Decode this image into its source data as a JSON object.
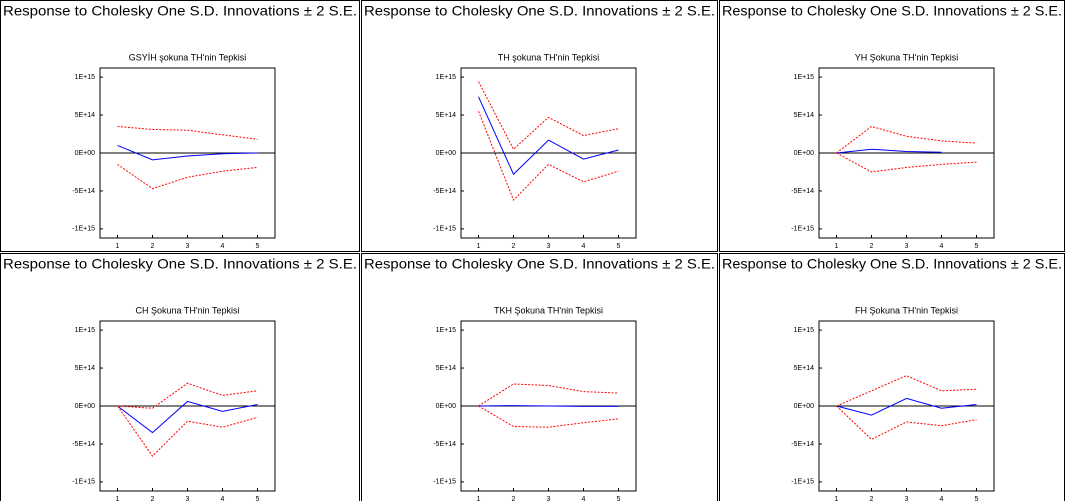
{
  "chart_data": [
    {
      "type": "line",
      "header": "Response to Cholesky One S.D. Innovations ± 2 S.E.",
      "title": "GSYİH şokuna TH'nin Tepkisi",
      "x": [
        1,
        2,
        3,
        4,
        5
      ],
      "xlim": [
        0.5,
        5.5
      ],
      "ylim": [
        -1120000000000000.0,
        1120000000000000.0
      ],
      "yticks": [
        {
          "value": 1000000000000000.0,
          "label": "1E+15"
        },
        {
          "value": 500000000000000.0,
          "label": "5E+14"
        },
        {
          "value": 0,
          "label": "0E+00"
        },
        {
          "value": -500000000000000.0,
          "label": "-5E+14"
        },
        {
          "value": -1000000000000000.0,
          "label": "-1E+15"
        }
      ],
      "series": [
        {
          "color": "#0000ff",
          "dashed": false,
          "values": [
            100000000000000.0,
            -90000000000000.0,
            -40000000000000.0,
            -10000000000000.0,
            0
          ]
        },
        {
          "color": "#ff0000",
          "dashed": true,
          "values": [
            350000000000000.0,
            310000000000000.0,
            300000000000000.0,
            240000000000000.0,
            180000000000000.0
          ]
        },
        {
          "color": "#ff0000",
          "dashed": true,
          "values": [
            -150000000000000.0,
            -470000000000000.0,
            -320000000000000.0,
            -240000000000000.0,
            -190000000000000.0
          ]
        }
      ]
    },
    {
      "type": "line",
      "header": "Response to Cholesky One S.D. Innovations ± 2 S.E.",
      "title": "TH şokuna TH'nin Tepkisi",
      "x": [
        1,
        2,
        3,
        4,
        5
      ],
      "xlim": [
        0.5,
        5.5
      ],
      "ylim": [
        -1120000000000000.0,
        1120000000000000.0
      ],
      "yticks": [
        {
          "value": 1000000000000000.0,
          "label": "1E+15"
        },
        {
          "value": 500000000000000.0,
          "label": "5E+14"
        },
        {
          "value": 0,
          "label": "0E+00"
        },
        {
          "value": -500000000000000.0,
          "label": "-5E+14"
        },
        {
          "value": -1000000000000000.0,
          "label": "-1E+15"
        }
      ],
      "series": [
        {
          "color": "#0000ff",
          "dashed": false,
          "values": [
            740000000000000.0,
            -280000000000000.0,
            170000000000000.0,
            -80000000000000.0,
            40000000000000.0
          ]
        },
        {
          "color": "#ff0000",
          "dashed": true,
          "values": [
            940000000000000.0,
            50000000000000.0,
            470000000000000.0,
            230000000000000.0,
            320000000000000.0
          ]
        },
        {
          "color": "#ff0000",
          "dashed": true,
          "values": [
            550000000000000.0,
            -620000000000000.0,
            -150000000000000.0,
            -380000000000000.0,
            -240000000000000.0
          ]
        }
      ]
    },
    {
      "type": "line",
      "header": "Response to Cholesky One S.D. Innovations ± 2 S.E.",
      "title": "YH Şokuna TH'nin Tepkisi",
      "x": [
        1,
        2,
        3,
        4,
        5
      ],
      "xlim": [
        0.5,
        5.5
      ],
      "ylim": [
        -1120000000000000.0,
        1120000000000000.0
      ],
      "yticks": [
        {
          "value": 1000000000000000.0,
          "label": "1E+15"
        },
        {
          "value": 500000000000000.0,
          "label": "5E+14"
        },
        {
          "value": 0,
          "label": "0E+00"
        },
        {
          "value": -500000000000000.0,
          "label": "-5E+14"
        },
        {
          "value": -1000000000000000.0,
          "label": "-1E+15"
        }
      ],
      "series": [
        {
          "color": "#0000ff",
          "dashed": false,
          "values": [
            0,
            50000000000000.0,
            20000000000000.0,
            10000000000000.0,
            null
          ]
        },
        {
          "color": "#ff0000",
          "dashed": true,
          "values": [
            0,
            350000000000000.0,
            220000000000000.0,
            160000000000000.0,
            130000000000000.0
          ]
        },
        {
          "color": "#ff0000",
          "dashed": true,
          "values": [
            0,
            -250000000000000.0,
            -190000000000000.0,
            -150000000000000.0,
            -120000000000000.0
          ]
        }
      ]
    },
    {
      "type": "line",
      "header": "Response to Cholesky One S.D. Innovations ± 2 S.E.",
      "title": "CH Şokuna TH'nin Tepkisi",
      "x": [
        1,
        2,
        3,
        4,
        5
      ],
      "xlim": [
        0.5,
        5.5
      ],
      "ylim": [
        -1120000000000000.0,
        1120000000000000.0
      ],
      "yticks": [
        {
          "value": 1000000000000000.0,
          "label": "1E+15"
        },
        {
          "value": 500000000000000.0,
          "label": "5E+14"
        },
        {
          "value": 0,
          "label": "0E+00"
        },
        {
          "value": -500000000000000.0,
          "label": "-5E+14"
        },
        {
          "value": -1000000000000000.0,
          "label": "-1E+15"
        }
      ],
      "series": [
        {
          "color": "#0000ff",
          "dashed": false,
          "values": [
            0,
            -350000000000000.0,
            60000000000000.0,
            -70000000000000.0,
            20000000000000.0
          ]
        },
        {
          "color": "#ff0000",
          "dashed": true,
          "values": [
            0,
            -30000000000000.0,
            300000000000000.0,
            140000000000000.0,
            200000000000000.0
          ]
        },
        {
          "color": "#ff0000",
          "dashed": true,
          "values": [
            0,
            -660000000000000.0,
            -200000000000000.0,
            -280000000000000.0,
            -150000000000000.0
          ]
        }
      ]
    },
    {
      "type": "line",
      "header": "Response to Cholesky One S.D. Innovations ± 2 S.E.",
      "title": "TKH Şokuna TH'nin Tepkisi",
      "x": [
        1,
        2,
        3,
        4,
        5
      ],
      "xlim": [
        0.5,
        5.5
      ],
      "ylim": [
        -1120000000000000.0,
        1120000000000000.0
      ],
      "yticks": [
        {
          "value": 1000000000000000.0,
          "label": "1E+15"
        },
        {
          "value": 500000000000000.0,
          "label": "5E+14"
        },
        {
          "value": 0,
          "label": "0E+00"
        },
        {
          "value": -500000000000000.0,
          "label": "-5E+14"
        },
        {
          "value": -1000000000000000.0,
          "label": "-1E+15"
        }
      ],
      "series": [
        {
          "color": "#0000ff",
          "dashed": false,
          "values": [
            0,
            5000000000000.0,
            0,
            -5000000000000.0,
            -5000000000000.0
          ]
        },
        {
          "color": "#ff0000",
          "dashed": true,
          "values": [
            0,
            290000000000000.0,
            270000000000000.0,
            190000000000000.0,
            170000000000000.0
          ]
        },
        {
          "color": "#ff0000",
          "dashed": true,
          "values": [
            0,
            -270000000000000.0,
            -280000000000000.0,
            -220000000000000.0,
            -170000000000000.0
          ]
        }
      ]
    },
    {
      "type": "line",
      "header": "Response to Cholesky One S.D. Innovations ± 2 S.E.",
      "title": "FH Şokuna TH'nin Tepkisi",
      "x": [
        1,
        2,
        3,
        4,
        5
      ],
      "xlim": [
        0.5,
        5.5
      ],
      "ylim": [
        -1120000000000000.0,
        1120000000000000.0
      ],
      "yticks": [
        {
          "value": 1000000000000000.0,
          "label": "1E+15"
        },
        {
          "value": 500000000000000.0,
          "label": "5E+14"
        },
        {
          "value": 0,
          "label": "0E+00"
        },
        {
          "value": -500000000000000.0,
          "label": "-5E+14"
        },
        {
          "value": -1000000000000000.0,
          "label": "-1E+15"
        }
      ],
      "series": [
        {
          "color": "#0000ff",
          "dashed": false,
          "values": [
            0,
            -120000000000000.0,
            100000000000000.0,
            -30000000000000.0,
            20000000000000.0
          ]
        },
        {
          "color": "#ff0000",
          "dashed": true,
          "values": [
            0,
            200000000000000.0,
            400000000000000.0,
            200000000000000.0,
            220000000000000.0
          ]
        },
        {
          "color": "#ff0000",
          "dashed": true,
          "values": [
            0,
            -440000000000000.0,
            -210000000000000.0,
            -260000000000000.0,
            -180000000000000.0
          ]
        }
      ]
    }
  ]
}
